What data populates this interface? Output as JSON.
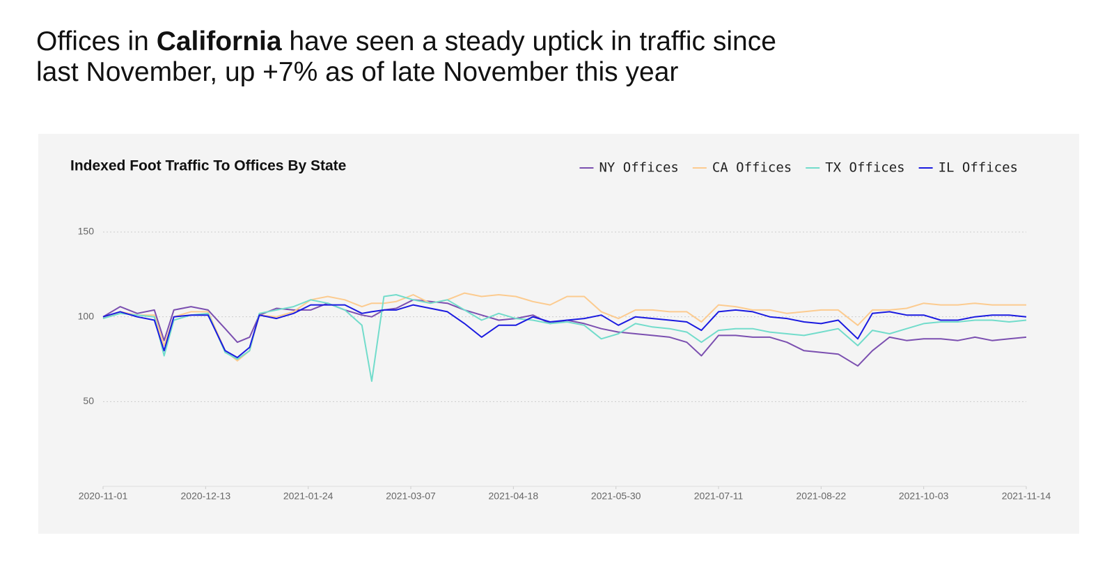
{
  "headline": {
    "lead": "Offices in",
    "emphasis": "California",
    "rest": "have seen a steady uptick in traffic since",
    "line2": "last November, up +7% as of late November this year"
  },
  "chart_data": {
    "type": "line",
    "title": "Indexed Foot Traffic To Offices By State",
    "x": [
      "2020-11-01",
      "2020-11-08",
      "2020-11-15",
      "2020-11-22",
      "2020-11-26",
      "2020-11-30",
      "2020-12-07",
      "2020-12-14",
      "2020-12-21",
      "2020-12-26",
      "2020-12-31",
      "2021-01-04",
      "2021-01-11",
      "2021-01-18",
      "2021-01-25",
      "2021-02-01",
      "2021-02-08",
      "2021-02-15",
      "2021-02-19",
      "2021-02-24",
      "2021-03-01",
      "2021-03-08",
      "2021-03-15",
      "2021-03-22",
      "2021-03-29",
      "2021-04-05",
      "2021-04-12",
      "2021-04-19",
      "2021-04-26",
      "2021-05-03",
      "2021-05-10",
      "2021-05-17",
      "2021-05-24",
      "2021-05-31",
      "2021-06-07",
      "2021-06-14",
      "2021-06-21",
      "2021-06-28",
      "2021-07-04",
      "2021-07-11",
      "2021-07-18",
      "2021-07-25",
      "2021-08-01",
      "2021-08-08",
      "2021-08-15",
      "2021-08-22",
      "2021-08-29",
      "2021-09-06",
      "2021-09-12",
      "2021-09-19",
      "2021-09-26",
      "2021-10-03",
      "2021-10-10",
      "2021-10-17",
      "2021-10-24",
      "2021-10-31",
      "2021-11-07",
      "2021-11-14"
    ],
    "series": [
      {
        "name": "NY Offices",
        "color": "#7b4fb0",
        "values": [
          100,
          106,
          102,
          104,
          86,
          104,
          106,
          104,
          93,
          85,
          88,
          101,
          105,
          104,
          104,
          108,
          104,
          101,
          100,
          104,
          105,
          110,
          109,
          108,
          104,
          101,
          98,
          99,
          101,
          96,
          98,
          96,
          93,
          91,
          90,
          89,
          88,
          85,
          77,
          89,
          89,
          88,
          88,
          85,
          80,
          79,
          78,
          71,
          80,
          88,
          86,
          87,
          87,
          86,
          88,
          86,
          87,
          88
        ]
      },
      {
        "name": "CA Offices",
        "color": "#fccb8f",
        "values": [
          99,
          103,
          101,
          101,
          83,
          100,
          103,
          103,
          80,
          74,
          80,
          101,
          100,
          103,
          110,
          112,
          110,
          106,
          108,
          108,
          109,
          113,
          108,
          110,
          114,
          112,
          113,
          112,
          109,
          107,
          112,
          112,
          103,
          99,
          104,
          104,
          103,
          103,
          97,
          107,
          106,
          104,
          104,
          102,
          103,
          104,
          104,
          95,
          104,
          104,
          105,
          108,
          107,
          107,
          108,
          107,
          107,
          107
        ]
      },
      {
        "name": "TX Offices",
        "color": "#72dccb",
        "values": [
          99,
          102,
          101,
          100,
          77,
          98,
          101,
          102,
          79,
          75,
          80,
          102,
          104,
          106,
          110,
          108,
          104,
          95,
          62,
          112,
          113,
          110,
          108,
          110,
          104,
          98,
          102,
          99,
          98,
          96,
          97,
          95,
          87,
          90,
          96,
          94,
          93,
          91,
          85,
          92,
          93,
          93,
          91,
          90,
          89,
          91,
          93,
          83,
          92,
          90,
          93,
          96,
          97,
          97,
          98,
          98,
          97,
          98
        ]
      },
      {
        "name": "IL Offices",
        "color": "#1a1ae0",
        "values": [
          100,
          103,
          100,
          98,
          80,
          100,
          101,
          101,
          80,
          76,
          82,
          101,
          99,
          102,
          107,
          107,
          107,
          102,
          103,
          104,
          104,
          107,
          105,
          103,
          96,
          88,
          95,
          95,
          100,
          97,
          98,
          99,
          101,
          95,
          100,
          99,
          98,
          97,
          92,
          103,
          104,
          103,
          100,
          99,
          97,
          96,
          98,
          87,
          102,
          103,
          101,
          101,
          98,
          98,
          100,
          101,
          101,
          100
        ]
      }
    ],
    "xlim": [
      "2020-11-01",
      "2021-11-14"
    ],
    "xticks": [
      "2020-11-01",
      "2020-12-13",
      "2021-01-24",
      "2021-03-07",
      "2021-04-18",
      "2021-05-30",
      "2021-07-11",
      "2021-08-22",
      "2021-10-03",
      "2021-11-14"
    ],
    "ylim": [
      0,
      150
    ],
    "yticks": [
      50,
      100,
      150
    ],
    "grid": true,
    "legend": "top-right"
  }
}
